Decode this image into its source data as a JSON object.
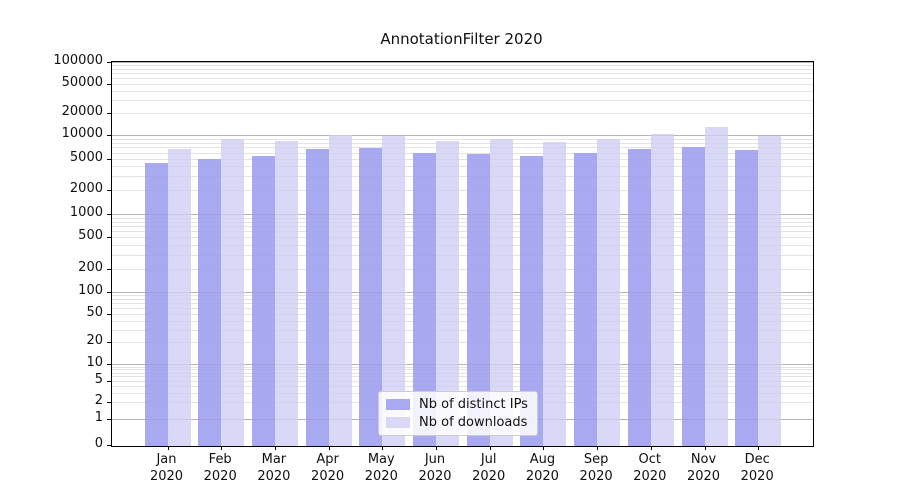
{
  "chart_data": {
    "type": "bar",
    "title": "AnnotationFilter 2020",
    "categories": [
      "Jan 2020",
      "Feb 2020",
      "Mar 2020",
      "Apr 2020",
      "May 2020",
      "Jun 2020",
      "Jul 2020",
      "Aug 2020",
      "Sep 2020",
      "Oct 2020",
      "Nov 2020",
      "Dec 2020"
    ],
    "series": [
      {
        "name": "Nb of distinct IPs",
        "color": "#a9a9f2",
        "values": [
          4400,
          4900,
          5400,
          6700,
          6900,
          6000,
          5800,
          5400,
          6000,
          6600,
          7100,
          6400
        ]
      },
      {
        "name": "Nb of downloads",
        "color": "#d9d9f7",
        "values": [
          6600,
          8800,
          8300,
          10000,
          9700,
          8400,
          9000,
          8100,
          9000,
          10200,
          13000,
          9700
        ]
      }
    ],
    "xlabel": "",
    "ylabel": "",
    "yscale": "symlog",
    "ylim": [
      0,
      100000
    ],
    "yticks": [
      100000,
      50000,
      20000,
      10000,
      5000,
      2000,
      1000,
      500,
      200,
      100,
      50,
      20,
      10,
      5,
      2,
      1,
      0
    ],
    "grid": "horizontal major and minor gridlines",
    "legend_position": "lower center",
    "gridline_major_color": "#c3c3c3",
    "gridline_minor_color": "#ebebeb"
  }
}
